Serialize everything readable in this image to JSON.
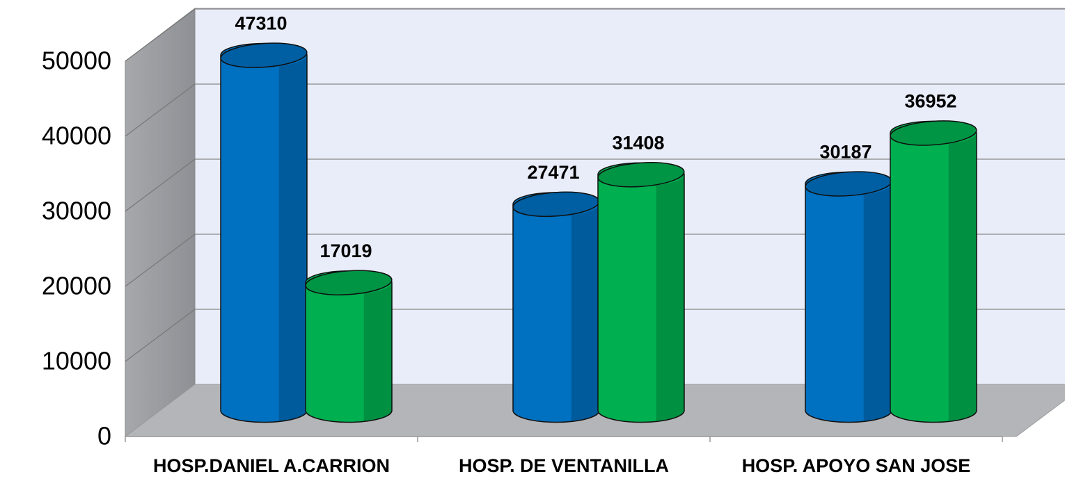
{
  "chart_data": {
    "type": "bar",
    "categories": [
      "HOSP.DANIEL A.CARRION",
      "HOSP. DE VENTANILLA",
      "HOSP. APOYO SAN JOSE"
    ],
    "series": [
      {
        "color": "#0070c0",
        "values": [
          47310,
          27471,
          30187
        ]
      },
      {
        "color": "#00b050",
        "values": [
          17019,
          31408,
          36952
        ]
      }
    ],
    "ylim": [
      0,
      50000
    ],
    "yticks": [
      0,
      10000,
      20000,
      30000,
      40000,
      50000
    ],
    "grid": true
  }
}
